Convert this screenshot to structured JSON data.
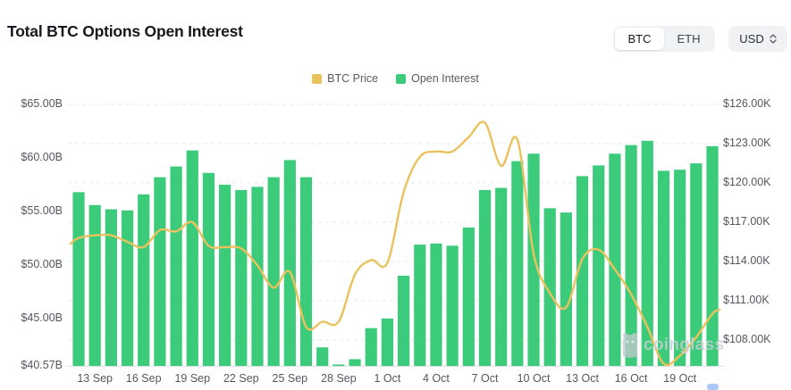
{
  "header": {
    "title": "Total BTC Options Open Interest",
    "asset_toggle": {
      "options": [
        "BTC",
        "ETH"
      ],
      "selected": "BTC"
    },
    "currency_select": {
      "value": "USD"
    }
  },
  "legend": [
    {
      "label": "BTC Price",
      "color": "#EAC25D"
    },
    {
      "label": "Open Interest",
      "color": "#3CCB7B"
    }
  ],
  "watermark": {
    "text": "coinglass"
  },
  "chart_data": {
    "type": "bar+line",
    "categories": [
      "12 Sep",
      "13 Sep",
      "14 Sep",
      "15 Sep",
      "16 Sep",
      "17 Sep",
      "18 Sep",
      "19 Sep",
      "20 Sep",
      "21 Sep",
      "22 Sep",
      "23 Sep",
      "24 Sep",
      "25 Sep",
      "26 Sep",
      "27 Sep",
      "28 Sep",
      "29 Sep",
      "30 Sep",
      "1 Oct",
      "2 Oct",
      "3 Oct",
      "4 Oct",
      "5 Oct",
      "6 Oct",
      "7 Oct",
      "8 Oct",
      "9 Oct",
      "10 Oct",
      "11 Oct",
      "12 Oct",
      "13 Oct",
      "14 Oct",
      "15 Oct",
      "16 Oct",
      "17 Oct",
      "18 Oct",
      "19 Oct",
      "20 Oct",
      "21 Oct"
    ],
    "series": [
      {
        "name": "Open Interest",
        "type": "bar",
        "axis": "left",
        "unit": "USD billions",
        "color": "#3CCB7B",
        "values": [
          56.8,
          55.6,
          55.2,
          55.1,
          56.6,
          58.2,
          59.2,
          60.7,
          58.6,
          57.5,
          57.0,
          57.3,
          58.2,
          59.8,
          58.2,
          42.3,
          40.7,
          41.2,
          44.1,
          45.0,
          49.0,
          51.9,
          52.0,
          51.8,
          53.5,
          57.0,
          57.2,
          59.7,
          60.4,
          55.3,
          54.9,
          58.3,
          59.3,
          60.4,
          61.2,
          61.6,
          58.8,
          58.9,
          59.5,
          61.1
        ]
      },
      {
        "name": "BTC Price",
        "type": "line",
        "axis": "right",
        "unit": "USD thousands",
        "color": "#EAC25D",
        "values": [
          115.8,
          116.0,
          116.0,
          115.5,
          115.1,
          116.4,
          116.3,
          117.0,
          115.2,
          115.1,
          115.0,
          113.7,
          112.0,
          113.2,
          109.0,
          109.4,
          109.4,
          113.0,
          114.1,
          113.9,
          119.3,
          122.0,
          122.4,
          122.4,
          123.5,
          124.6,
          121.3,
          123.3,
          114.6,
          111.6,
          110.5,
          114.2,
          114.9,
          113.4,
          111.5,
          109.0,
          106.2,
          106.8,
          108.2,
          110.0
        ]
      }
    ],
    "left_axis": {
      "min": 40.57,
      "max": 65,
      "tick_values": [
        65,
        60,
        55,
        50,
        45,
        40.57
      ],
      "tick_labels": [
        "$65.00B",
        "$60.00B",
        "$55.00B",
        "$50.00B",
        "$45.00B",
        "$40.57B"
      ]
    },
    "right_axis": {
      "min": 108,
      "max": 126,
      "tick_values": [
        126,
        123,
        120,
        117,
        114,
        111,
        108
      ],
      "tick_labels": [
        "$126.00K",
        "$123.00K",
        "$120.00K",
        "$117.00K",
        "$114.00K",
        "$111.00K",
        "$108.00K"
      ]
    },
    "x_ticks": [
      "13 Sep",
      "16 Sep",
      "19 Sep",
      "22 Sep",
      "25 Sep",
      "28 Sep",
      "1 Oct",
      "4 Oct",
      "7 Oct",
      "10 Oct",
      "13 Oct",
      "16 Oct",
      "19 Oct"
    ],
    "grid": "horizontal-dashed",
    "legend_position": "top-center"
  }
}
